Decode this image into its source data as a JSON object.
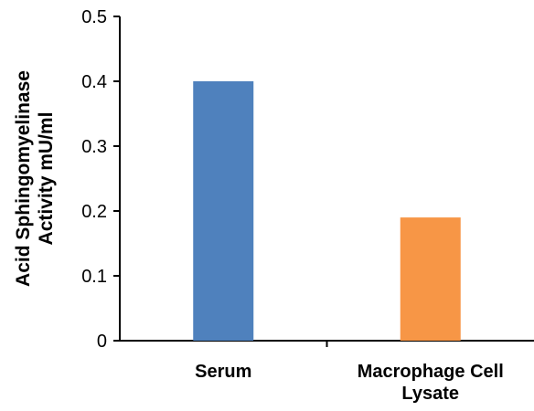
{
  "chart_data": {
    "type": "bar",
    "categories": [
      "Serum",
      "Macrophage Cell Lysate"
    ],
    "category_label_lines": [
      [
        "Serum"
      ],
      [
        "Macrophage Cell",
        "Lysate"
      ]
    ],
    "values": [
      0.4,
      0.19
    ],
    "colors": [
      "#4f81bd",
      "#f79646"
    ],
    "ylabel_lines": [
      "Acid Sphingomyelinase",
      "Activity mU/ml"
    ],
    "ylim": [
      0,
      0.5
    ],
    "yticks": [
      0,
      0.1,
      0.2,
      0.3,
      0.4,
      0.5
    ],
    "ytick_labels": [
      "0",
      "0.1",
      "0.2",
      "0.3",
      "0.4",
      "0.5"
    ],
    "grid": false,
    "legend": false
  }
}
